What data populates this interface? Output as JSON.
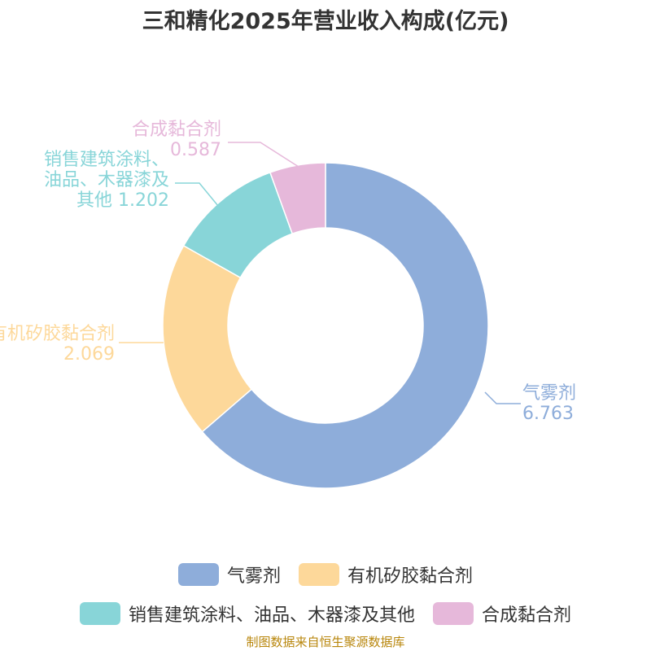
{
  "title": "三和精化2025年营业收入构成(亿元)",
  "footer": "制图数据来自恒生聚源数据库",
  "chart_data": {
    "type": "pie",
    "series": [
      {
        "name": "气雾剂",
        "value": 6.763,
        "color": "#8eadda",
        "label_lines": [
          "气雾剂",
          "6.763"
        ],
        "label_side": "right"
      },
      {
        "name": "有机矽胶黏合剂",
        "value": 2.069,
        "color": "#fdd89a",
        "label_lines": [
          "有机矽胶黏合剂",
          "2.069"
        ],
        "label_side": "left"
      },
      {
        "name": "销售建筑涂料、油品、木器漆及其他",
        "value": 1.202,
        "color": "#88d5d8",
        "label_lines": [
          "销售建筑涂料、",
          "油品、木器漆及",
          "其他 1.202"
        ],
        "label_side": "left"
      },
      {
        "name": "合成黏合剂",
        "value": 0.587,
        "color": "#e6b8da",
        "label_lines": [
          "合成黏合剂",
          "0.587"
        ],
        "label_side": "left"
      }
    ],
    "legend_rows": [
      [
        "气雾剂",
        "有机矽胶黏合剂"
      ],
      [
        "销售建筑涂料、油品、木器漆及其他",
        "合成黏合剂"
      ]
    ]
  }
}
